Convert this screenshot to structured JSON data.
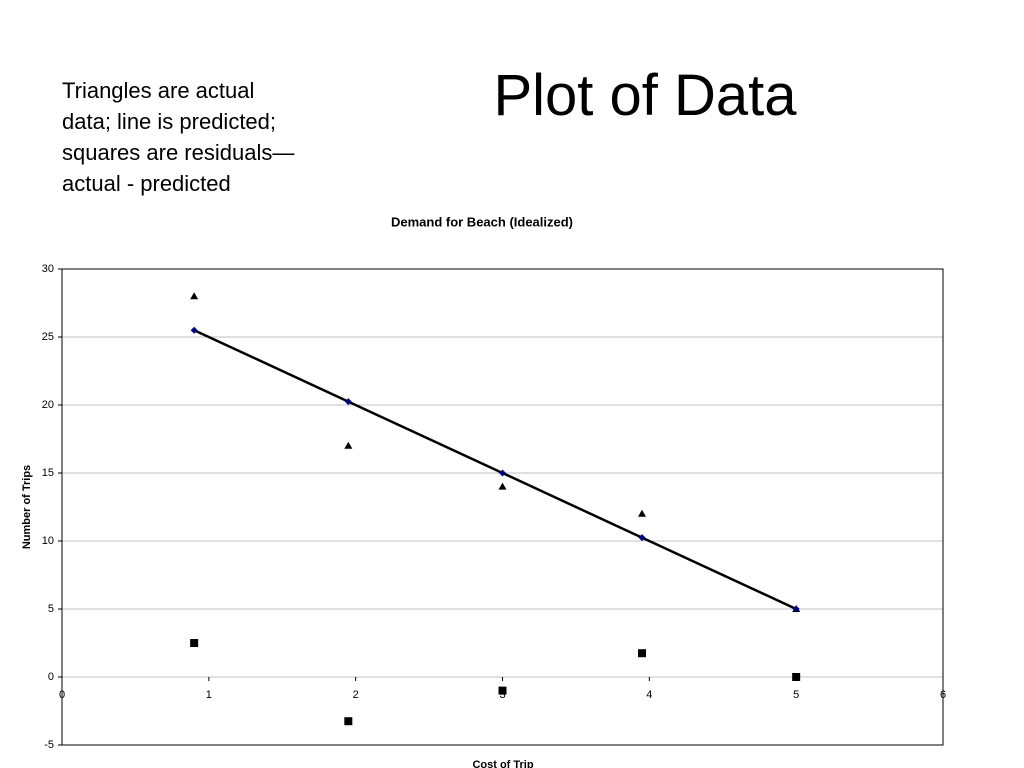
{
  "slide_title": "Plot of Data",
  "note": "Triangles are actual data; line is predicted; squares are residuals—actual - predicted",
  "chart_data": {
    "type": "scatter",
    "title": "Demand for Beach (Idealized)",
    "x_label": "Cost of Trip",
    "y_label": "Number of Trips",
    "x": [
      0.9,
      1.95,
      3,
      3.95,
      5
    ],
    "series": [
      {
        "marker": "triangle",
        "color": "#000000",
        "values": [
          28,
          17,
          14,
          12,
          5
        ]
      },
      {
        "marker": "diamond",
        "line": true,
        "color": "#000080",
        "line_color": "#000000",
        "values": [
          25.5,
          20.25,
          15,
          10.25,
          5
        ]
      },
      {
        "marker": "square",
        "color": "#000000",
        "values": [
          2.5,
          -3.25,
          -1,
          1.75,
          0
        ]
      }
    ],
    "xlim": [
      0,
      6
    ],
    "xticks": [
      0,
      1,
      2,
      3,
      4,
      5,
      6
    ],
    "ylim": [
      -5,
      30
    ],
    "yticks": [
      -5,
      0,
      5,
      10,
      15,
      20,
      25,
      30
    ],
    "grid": true
  }
}
